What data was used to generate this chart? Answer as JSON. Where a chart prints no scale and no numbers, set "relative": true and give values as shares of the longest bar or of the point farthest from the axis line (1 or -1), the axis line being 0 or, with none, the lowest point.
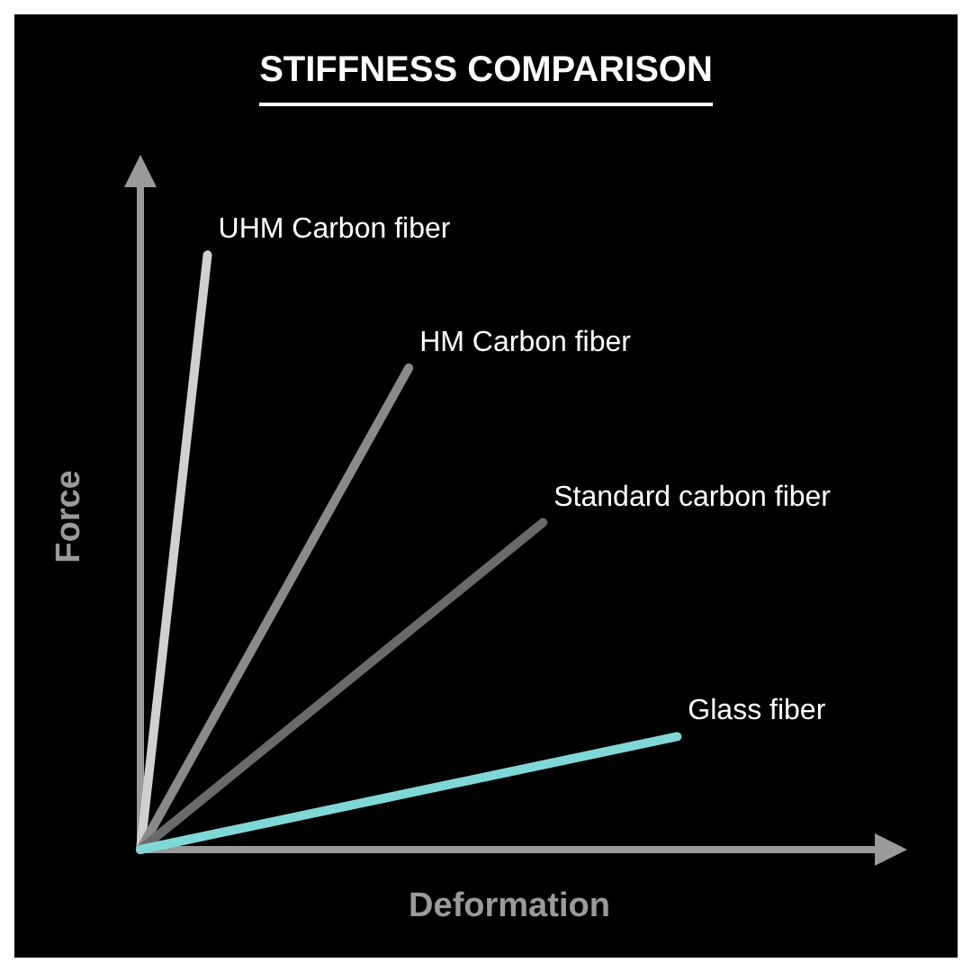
{
  "chart_data": {
    "type": "line",
    "title": "STIFFNESS COMPARISON",
    "xlabel": "Deformation",
    "ylabel": "Force",
    "relative": true,
    "legend": false,
    "grid": false,
    "marker": "none",
    "line_style": "solid",
    "categories": [
      null,
      null,
      null,
      null,
      null,
      null,
      null,
      null,
      null,
      null,
      null,
      null
    ],
    "series": [
      {
        "name": "UHM Carbon fiber",
        "color": "#d0d0d0",
        "values": [
          0,
          1,
          null,
          null,
          null,
          null,
          null,
          null,
          null,
          null,
          null,
          null
        ]
      },
      {
        "name": "HM Carbon fiber",
        "color": "#8a8a8a",
        "values": [
          0,
          null,
          null,
          null,
          0.81,
          null,
          null,
          null,
          null,
          null,
          null,
          null
        ]
      },
      {
        "name": "Standard carbon fiber",
        "color": "#6a6a6a",
        "values": [
          0,
          null,
          null,
          null,
          null,
          null,
          0.55,
          null,
          null,
          null,
          null,
          null
        ]
      },
      {
        "name": "Glass fiber",
        "color": "#7fd8d8",
        "values": [
          0,
          null,
          null,
          null,
          null,
          null,
          null,
          null,
          0.19,
          null,
          null,
          null
        ]
      }
    ]
  }
}
